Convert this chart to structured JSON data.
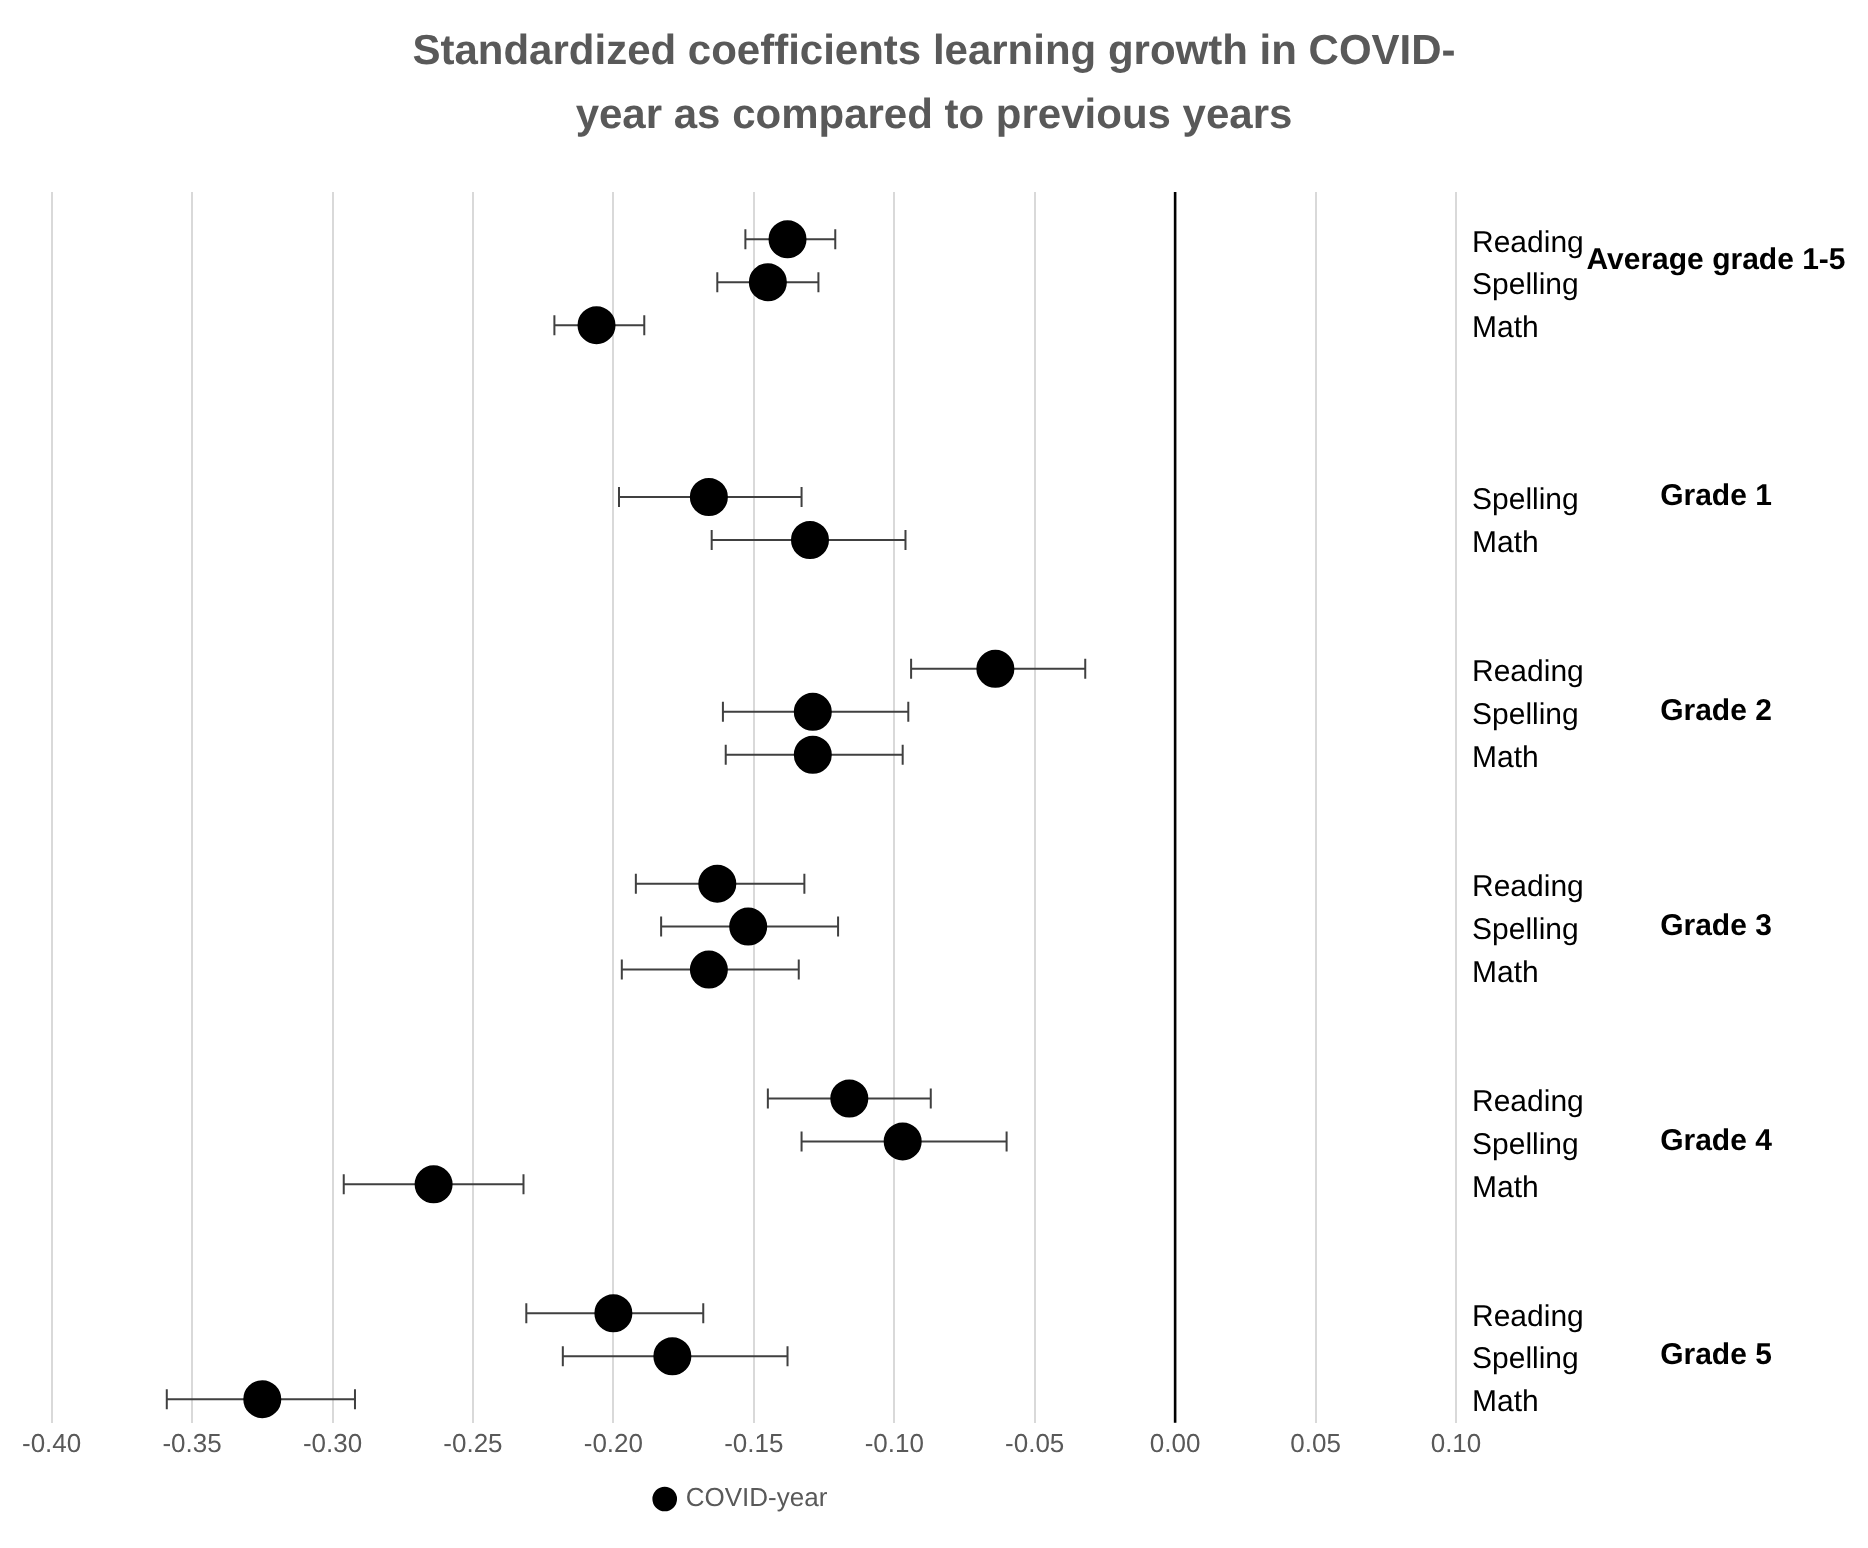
{
  "chart_data": {
    "type": "scatter",
    "orientation": "horizontal",
    "title": "Standardized coefficients learning growth in COVID-year as compared to previous years",
    "categories": [
      "Reading",
      "Spelling",
      "Math",
      null,
      null,
      null,
      "Spelling",
      "Math",
      null,
      null,
      "Reading",
      "Spelling",
      "Math",
      null,
      null,
      "Reading",
      "Spelling",
      "Math",
      null,
      null,
      "Reading",
      "Spelling",
      "Math",
      null,
      null,
      "Reading",
      "Spelling",
      "Math"
    ],
    "series": [
      {
        "name": "COVID-year",
        "color": "#000000",
        "values": [
          -0.138,
          -0.145,
          -0.206,
          null,
          null,
          null,
          -0.166,
          -0.13,
          null,
          null,
          -0.064,
          -0.129,
          -0.129,
          null,
          null,
          -0.163,
          -0.152,
          -0.166,
          null,
          null,
          -0.116,
          -0.097,
          -0.264,
          null,
          null,
          -0.2,
          -0.179,
          -0.325
        ],
        "errors": [
          [
            -0.153,
            -0.121
          ],
          [
            -0.163,
            -0.127
          ],
          [
            -0.221,
            -0.189
          ],
          null,
          null,
          null,
          [
            -0.198,
            -0.133
          ],
          [
            -0.165,
            -0.096
          ],
          null,
          null,
          [
            -0.094,
            -0.032
          ],
          [
            -0.161,
            -0.095
          ],
          [
            -0.16,
            -0.097
          ],
          null,
          null,
          [
            -0.192,
            -0.132
          ],
          [
            -0.183,
            -0.12
          ],
          [
            -0.197,
            -0.134
          ],
          null,
          null,
          [
            -0.145,
            -0.087
          ],
          [
            -0.133,
            -0.06
          ],
          [
            -0.296,
            -0.232
          ],
          null,
          null,
          [
            -0.231,
            -0.168
          ],
          [
            -0.218,
            -0.138
          ],
          [
            -0.359,
            -0.292
          ]
        ]
      }
    ],
    "annotations": [
      "Average grade 1-5",
      "Grade 1",
      "Grade 2",
      "Grade 3",
      "Grade 4",
      "Grade 5"
    ],
    "xlim": [
      -0.4,
      0.1
    ],
    "xticks": [
      {
        "value": -0.4,
        "label": "-0.40"
      },
      {
        "value": -0.35,
        "label": "-0.35"
      },
      {
        "value": -0.3,
        "label": "-0.30"
      },
      {
        "value": -0.25,
        "label": "-0.25"
      },
      {
        "value": -0.2,
        "label": "-0.20"
      },
      {
        "value": -0.15,
        "label": "-0.15"
      },
      {
        "value": -0.1,
        "label": "-0.10"
      },
      {
        "value": -0.05,
        "label": "-0.05"
      },
      {
        "value": 0,
        "label": "0.00"
      },
      {
        "value": 0.05,
        "label": "0.05"
      },
      {
        "value": 0.1,
        "label": "0.10"
      }
    ],
    "ref_lines": [
      {
        "axis": "x",
        "value": 0,
        "color": "#000000"
      }
    ],
    "grid": "x",
    "legend": "bottom",
    "marker": "circle"
  }
}
